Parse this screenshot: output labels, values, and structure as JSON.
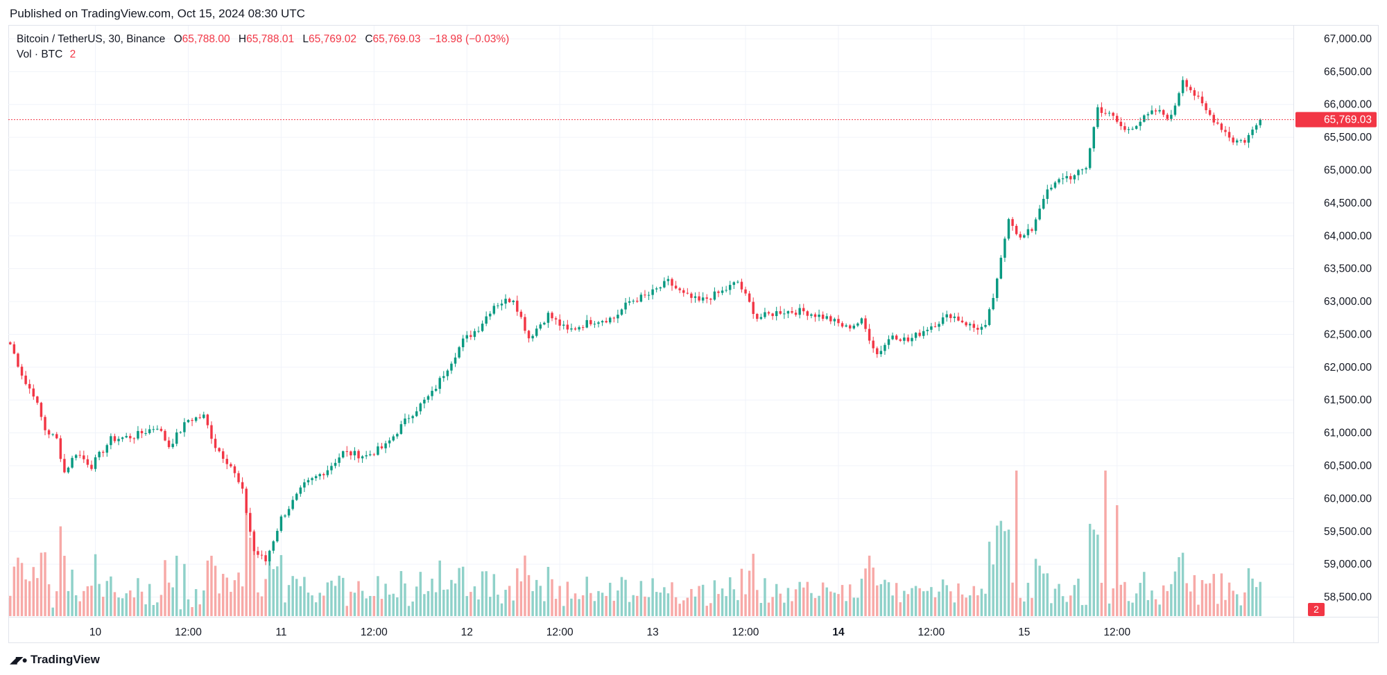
{
  "header": {
    "published": "Published on TradingView.com, Oct 15, 2024 08:30 UTC"
  },
  "legend": {
    "symbol": "Bitcoin / TetherUS, 30, Binance",
    "o_key": "O",
    "o_val": "65,788.00",
    "h_key": "H",
    "h_val": "65,788.01",
    "l_key": "L",
    "l_val": "65,769.02",
    "c_key": "C",
    "c_val": "65,769.03",
    "change": "−18.98 (−0.03%)",
    "vol_label": "Vol · BTC",
    "vol_val": "2"
  },
  "footer": {
    "brand": "TradingView"
  },
  "colors": {
    "up": "#089981",
    "down": "#f23645",
    "vol_up": "#8fd1c9",
    "vol_down": "#f7a9a7",
    "grid": "#f0f3fa",
    "last_price": "#f23645"
  },
  "chart_data": {
    "type": "candlestick",
    "interval": "30",
    "price_axis": {
      "ticks": [
        "67,000.00",
        "66,500.00",
        "66,000.00",
        "65,500.00",
        "65,000.00",
        "64,500.00",
        "64,000.00",
        "63,500.00",
        "63,000.00",
        "62,500.00",
        "62,000.00",
        "61,500.00",
        "61,000.00",
        "60,500.00",
        "60,000.00",
        "59,500.00",
        "59,000.00",
        "58,500.00"
      ],
      "range": [
        58200,
        67200
      ]
    },
    "time_axis": {
      "labels": [
        "10",
        "12:00",
        "11",
        "12:00",
        "12",
        "12:00",
        "13",
        "12:00",
        "14",
        "12:00",
        "15",
        "12:00"
      ],
      "bold": [
        "14"
      ]
    },
    "last_price": 65769.03,
    "last_price_label": "65,769.03",
    "last_volume_label": "2",
    "anchors": [
      [
        0,
        62350
      ],
      [
        4,
        61750
      ],
      [
        6,
        61600
      ],
      [
        9,
        61050
      ],
      [
        12,
        60900
      ],
      [
        14,
        60400
      ],
      [
        17,
        60700
      ],
      [
        21,
        60500
      ],
      [
        26,
        60900
      ],
      [
        32,
        60950
      ],
      [
        38,
        61100
      ],
      [
        41,
        60800
      ],
      [
        46,
        61200
      ],
      [
        50,
        61250
      ],
      [
        53,
        60800
      ],
      [
        57,
        60500
      ],
      [
        60,
        60100
      ],
      [
        63,
        59200
      ],
      [
        66,
        59050
      ],
      [
        70,
        59700
      ],
      [
        76,
        60200
      ],
      [
        82,
        60450
      ],
      [
        86,
        60700
      ],
      [
        92,
        60650
      ],
      [
        97,
        60800
      ],
      [
        103,
        61250
      ],
      [
        109,
        61600
      ],
      [
        113,
        62000
      ],
      [
        117,
        62400
      ],
      [
        121,
        62600
      ],
      [
        125,
        62950
      ],
      [
        130,
        63050
      ],
      [
        134,
        62450
      ],
      [
        139,
        62800
      ],
      [
        144,
        62550
      ],
      [
        150,
        62700
      ],
      [
        156,
        62750
      ],
      [
        160,
        63000
      ],
      [
        165,
        63100
      ],
      [
        170,
        63300
      ],
      [
        174,
        63100
      ],
      [
        178,
        63000
      ],
      [
        184,
        63150
      ],
      [
        188,
        63300
      ],
      [
        193,
        62750
      ],
      [
        199,
        62850
      ],
      [
        205,
        62850
      ],
      [
        211,
        62750
      ],
      [
        216,
        62600
      ],
      [
        220,
        62700
      ],
      [
        224,
        62200
      ],
      [
        228,
        62500
      ],
      [
        232,
        62400
      ],
      [
        237,
        62600
      ],
      [
        243,
        62800
      ],
      [
        249,
        62600
      ],
      [
        252,
        62600
      ],
      [
        255,
        63300
      ],
      [
        258,
        64300
      ],
      [
        261,
        63950
      ],
      [
        264,
        64100
      ],
      [
        267,
        64600
      ],
      [
        272,
        64900
      ],
      [
        275,
        64900
      ],
      [
        278,
        65050
      ],
      [
        281,
        65950
      ],
      [
        285,
        65800
      ],
      [
        288,
        65600
      ],
      [
        292,
        65750
      ],
      [
        296,
        65900
      ],
      [
        300,
        65800
      ],
      [
        303,
        66400
      ],
      [
        306,
        66150
      ],
      [
        309,
        65900
      ],
      [
        313,
        65650
      ],
      [
        316,
        65450
      ],
      [
        319,
        65450
      ],
      [
        321,
        65600
      ],
      [
        323,
        65769
      ]
    ],
    "time_marks": [
      {
        "label": "10",
        "bar": 22
      },
      {
        "label": "12:00",
        "bar": 46
      },
      {
        "label": "11",
        "bar": 70
      },
      {
        "label": "12:00",
        "bar": 94
      },
      {
        "label": "12",
        "bar": 118
      },
      {
        "label": "12:00",
        "bar": 142
      },
      {
        "label": "13",
        "bar": 166
      },
      {
        "label": "12:00",
        "bar": 190
      },
      {
        "label": "14",
        "bar": 214
      },
      {
        "label": "12:00",
        "bar": 238
      },
      {
        "label": "15",
        "bar": 262
      },
      {
        "label": "12:00",
        "bar": 286
      }
    ]
  }
}
